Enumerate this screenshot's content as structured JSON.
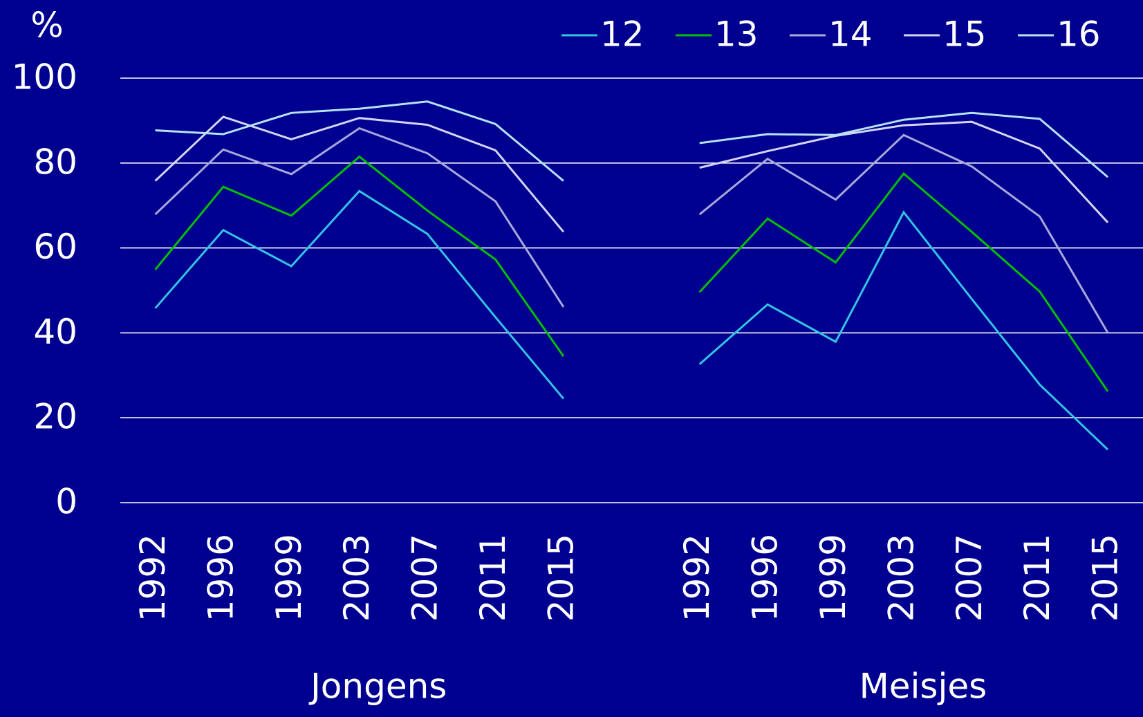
{
  "chart_data": {
    "type": "line",
    "y_label": "%",
    "categories": [
      "1992",
      "1996",
      "1999",
      "2003",
      "2007",
      "2011",
      "2015",
      null,
      "1992",
      "1996",
      "1999",
      "2003",
      "2007",
      "2011",
      "2015"
    ],
    "groups": [
      "Jongens",
      "Meisjes"
    ],
    "series": [
      {
        "name": "12",
        "color": "#33c4e4",
        "values": [
          45.8,
          64.2,
          55.7,
          73.4,
          63.3,
          43.7,
          24.5,
          null,
          32.6,
          46.7,
          37.9,
          68.4,
          48.0,
          27.8,
          12.5
        ]
      },
      {
        "name": "13",
        "color": "#00c000",
        "values": [
          54.9,
          74.4,
          67.6,
          81.5,
          68.8,
          57.3,
          34.5,
          null,
          49.6,
          66.9,
          56.6,
          77.5,
          63.8,
          49.7,
          26.2
        ]
      },
      {
        "name": "14",
        "color": "#a8a8dc",
        "values": [
          67.9,
          83.2,
          77.4,
          88.2,
          82.3,
          71.0,
          46.1,
          null,
          67.9,
          81.0,
          71.4,
          86.6,
          79.2,
          67.4,
          40.0
        ]
      },
      {
        "name": "15",
        "color": "#d4d4f4",
        "values": [
          75.8,
          90.9,
          85.6,
          90.6,
          89.0,
          83.0,
          63.8,
          null,
          78.9,
          82.8,
          86.4,
          88.9,
          89.7,
          83.4,
          66.0
        ]
      },
      {
        "name": "16",
        "color": "#b4e4f4",
        "values": [
          87.7,
          86.8,
          91.8,
          92.8,
          94.5,
          89.2,
          75.8,
          null,
          84.7,
          86.8,
          86.6,
          90.2,
          91.8,
          90.4,
          76.7
        ]
      }
    ],
    "ylim": [
      0,
      100
    ],
    "yticks": [
      0,
      20,
      40,
      60,
      80,
      100
    ],
    "grid": true,
    "legend": "top-right"
  }
}
